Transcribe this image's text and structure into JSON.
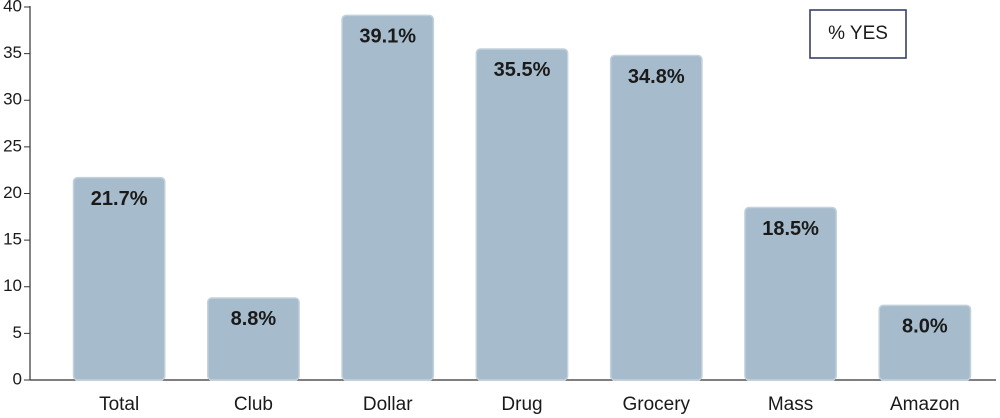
{
  "chart_data": {
    "type": "bar",
    "categories": [
      "Total",
      "Club",
      "Dollar",
      "Drug",
      "Grocery",
      "Mass",
      "Amazon"
    ],
    "series": [
      {
        "name": "% YES",
        "color": "#a6bbcc",
        "values": [
          21.7,
          8.8,
          39.1,
          35.5,
          34.8,
          18.5,
          8.0
        ],
        "value_labels": [
          "21.7%",
          "8.8%",
          "39.1%",
          "35.5%",
          "34.8%",
          "18.5%",
          "8.0%"
        ]
      }
    ],
    "ylim": [
      0,
      40
    ],
    "yticks": [
      0,
      5,
      10,
      15,
      20,
      25,
      30,
      35,
      40
    ],
    "grid": false,
    "legend": "top-right"
  }
}
